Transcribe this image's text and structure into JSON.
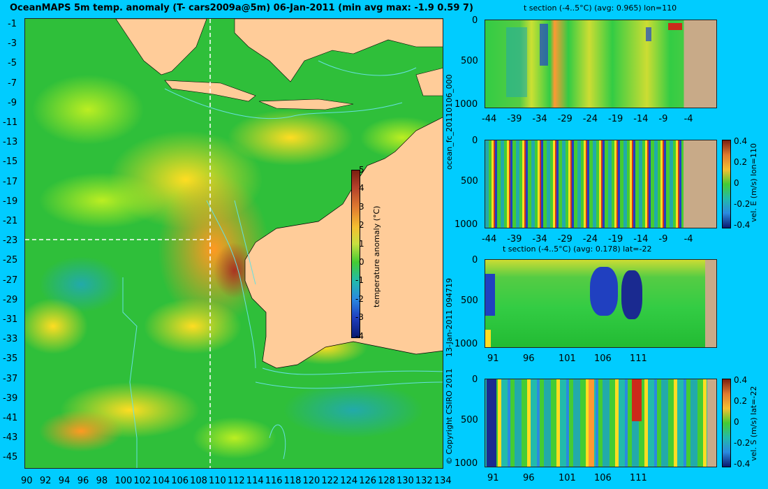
{
  "map": {
    "title": "OceanMAPS 5m temp. anomaly (T- cars2009a@5m) 06-Jan-2011 (min avg max: -1.9 0.59 7)",
    "y_ticks": [
      "-1",
      "-3",
      "-5",
      "-7",
      "-9",
      "-11",
      "-13",
      "-15",
      "-17",
      "-19",
      "-21",
      "-23",
      "-25",
      "-27",
      "-29",
      "-31",
      "-33",
      "-35",
      "-37",
      "-39",
      "-41",
      "-43",
      "-45"
    ],
    "x_ticks": [
      "90",
      "92",
      "94",
      "96",
      "98",
      "100",
      "102",
      "104",
      "106",
      "108",
      "110",
      "112",
      "114",
      "116",
      "118",
      "120",
      "122",
      "124",
      "126",
      "128",
      "130",
      "132",
      "134"
    ],
    "section_lon": 110,
    "section_lat": -22,
    "colorbar": {
      "label": "temperature anomaly (°C)",
      "ticks": [
        "5",
        "4",
        "3",
        "2",
        "1",
        "0",
        "-1",
        "-2",
        "-3",
        "-4"
      ]
    }
  },
  "panels": {
    "p1": {
      "title": "t section (-4..5°C) (avg: 0.965) lon=110",
      "y_ticks": [
        "0",
        "500",
        "1000"
      ],
      "x_ticks": [
        "-44",
        "-39",
        "-34",
        "-29",
        "-24",
        "-19",
        "-14",
        "-9",
        "-4"
      ]
    },
    "p2": {
      "y_ticks": [
        "0",
        "500",
        "1000"
      ],
      "x_ticks": [
        "-44",
        "-39",
        "-34",
        "-29",
        "-24",
        "-19",
        "-14",
        "-9",
        "-4"
      ],
      "colorbar_label": "vel. E (m/s) lon=110",
      "colorbar_ticks": [
        "0.4",
        "0.2",
        "0",
        "-0.2",
        "-0.4"
      ]
    },
    "p3": {
      "title": "t section (-4..5°C) (avg: 0.178) lat=-22",
      "y_ticks": [
        "0",
        "500",
        "1000"
      ],
      "x_ticks": [
        "91",
        "96",
        "101",
        "106",
        "111"
      ]
    },
    "p4": {
      "y_ticks": [
        "0",
        "500",
        "1000"
      ],
      "x_ticks": [
        "91",
        "96",
        "101",
        "106",
        "111"
      ],
      "colorbar_label": "vel. S (m/s) lat=-22",
      "colorbar_ticks": [
        "0.4",
        "0.2",
        "0",
        "-0.2",
        "-0.4"
      ]
    }
  },
  "side_text": {
    "run_id": "ocean_fc_20110106_000",
    "timestamp": "13-Jan-2011 094719",
    "copyright": "© Copyright CSIRO 2011"
  },
  "colors": {
    "background": "#00ccff",
    "land": "#ffcc99",
    "section_land": "#c8aa88",
    "mean_field": "#22bb33"
  }
}
